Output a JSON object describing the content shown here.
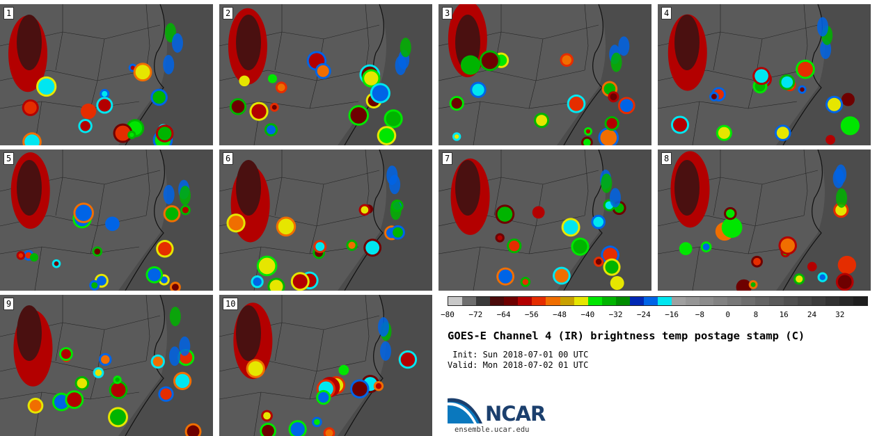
{
  "panels": [
    {
      "label": "1"
    },
    {
      "label": "2"
    },
    {
      "label": "3"
    },
    {
      "label": "4"
    },
    {
      "label": "5"
    },
    {
      "label": "6"
    },
    {
      "label": "7"
    },
    {
      "label": "8"
    },
    {
      "label": "9"
    },
    {
      "label": "10"
    }
  ],
  "colorbar": {
    "colors": [
      "#c8c8c8",
      "#6e6e6e",
      "#3a3a3a",
      "#4a0a0a",
      "#6e0000",
      "#b30000",
      "#e52d00",
      "#f06e00",
      "#c8a000",
      "#e6e600",
      "#00e600",
      "#00b400",
      "#008c00",
      "#0028b4",
      "#0064e6",
      "#00e6f0",
      "#a0a0a0",
      "#969696",
      "#8c8c8c",
      "#828282",
      "#787878",
      "#6e6e6e",
      "#646464",
      "#5a5a5a",
      "#505050",
      "#464646",
      "#3c3c3c",
      "#323232",
      "#282828",
      "#1e1e1e"
    ],
    "ticks": [
      -80,
      -72,
      -64,
      -56,
      -48,
      -40,
      -32,
      -24,
      -16,
      -8,
      0,
      8,
      16,
      24,
      32
    ],
    "tick_labels": [
      "−80",
      "−72",
      "−64",
      "−56",
      "−48",
      "−40",
      "−32",
      "−24",
      "−16",
      "−8",
      "0",
      "8",
      "16",
      "24",
      "32"
    ],
    "min": -80,
    "max": 40
  },
  "title": "GOES-E Channel 4 (IR) brightness temp postage stamp (C)",
  "init": " Init: Sun 2018-07-01 00 UTC",
  "valid": "Valid: Mon 2018-07-02 01 UTC",
  "logo": {
    "text": "NCAR",
    "site": "ensemble.ucar.edu"
  }
}
